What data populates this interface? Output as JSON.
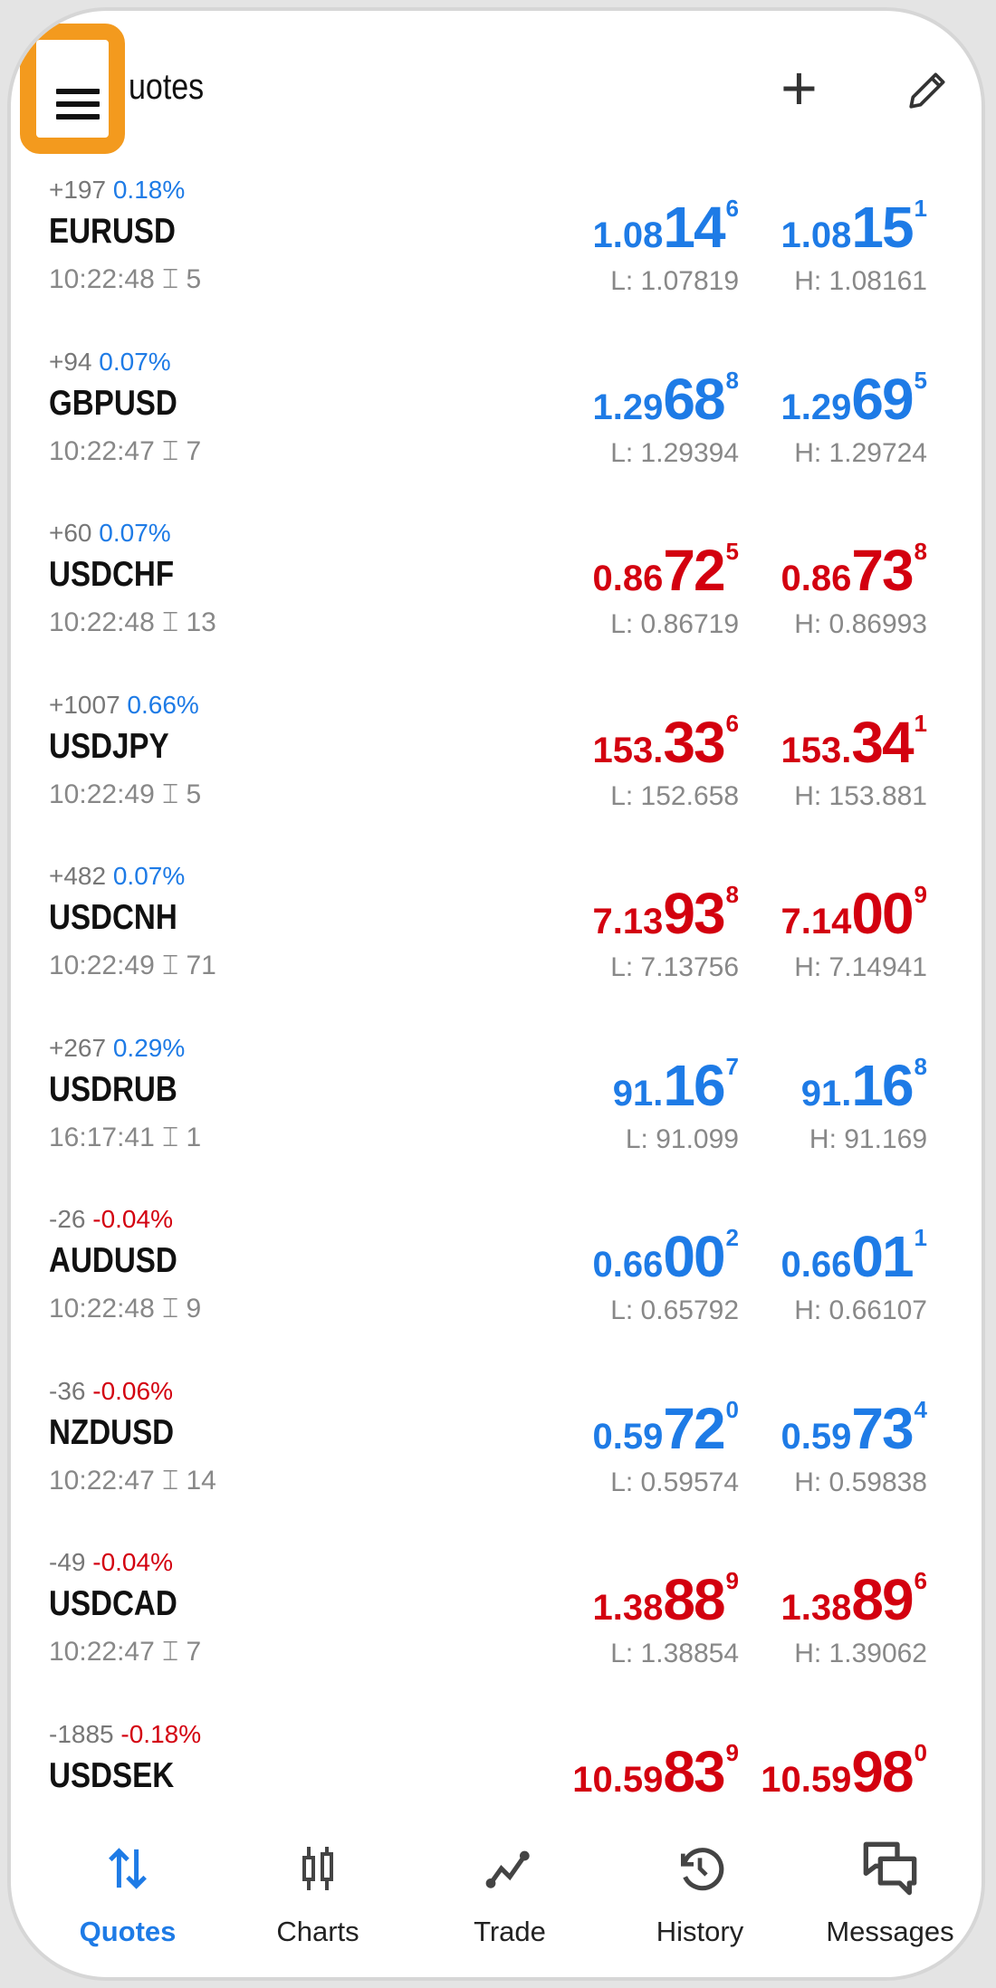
{
  "header": {
    "title": "uotes",
    "menu_icon": "hamburger-icon",
    "add_icon": "plus-icon",
    "edit_icon": "pencil-icon",
    "highlight_color": "#f39a1e"
  },
  "colors": {
    "up": "#1e7be6",
    "down": "#d3000f"
  },
  "quotes": [
    {
      "change": "+197",
      "pct": "0.18%",
      "pct_dir": "up",
      "symbol": "EURUSD",
      "time": "10:22:48",
      "spread": "5",
      "dir": "up",
      "bid": {
        "p": "1.08",
        "b": "14",
        "s": "6"
      },
      "ask": {
        "p": "1.08",
        "b": "15",
        "s": "1"
      },
      "low": "L: 1.07819",
      "high": "H: 1.08161"
    },
    {
      "change": "+94",
      "pct": "0.07%",
      "pct_dir": "up",
      "symbol": "GBPUSD",
      "time": "10:22:47",
      "spread": "7",
      "dir": "up",
      "bid": {
        "p": "1.29",
        "b": "68",
        "s": "8"
      },
      "ask": {
        "p": "1.29",
        "b": "69",
        "s": "5"
      },
      "low": "L: 1.29394",
      "high": "H: 1.29724"
    },
    {
      "change": "+60",
      "pct": "0.07%",
      "pct_dir": "up",
      "symbol": "USDCHF",
      "time": "10:22:48",
      "spread": "13",
      "dir": "down",
      "bid": {
        "p": "0.86",
        "b": "72",
        "s": "5"
      },
      "ask": {
        "p": "0.86",
        "b": "73",
        "s": "8"
      },
      "low": "L: 0.86719",
      "high": "H: 0.86993"
    },
    {
      "change": "+1007",
      "pct": "0.66%",
      "pct_dir": "up",
      "symbol": "USDJPY",
      "time": "10:22:49",
      "spread": "5",
      "dir": "down",
      "bid": {
        "p": "153.",
        "b": "33",
        "s": "6"
      },
      "ask": {
        "p": "153.",
        "b": "34",
        "s": "1"
      },
      "low": "L: 152.658",
      "high": "H: 153.881"
    },
    {
      "change": "+482",
      "pct": "0.07%",
      "pct_dir": "up",
      "symbol": "USDCNH",
      "time": "10:22:49",
      "spread": "71",
      "dir": "down",
      "bid": {
        "p": "7.13",
        "b": "93",
        "s": "8"
      },
      "ask": {
        "p": "7.14",
        "b": "00",
        "s": "9"
      },
      "low": "L: 7.13756",
      "high": "H: 7.14941"
    },
    {
      "change": "+267",
      "pct": "0.29%",
      "pct_dir": "up",
      "symbol": "USDRUB",
      "time": "16:17:41",
      "spread": "1",
      "dir": "up",
      "bid": {
        "p": "91.",
        "b": "16",
        "s": "7"
      },
      "ask": {
        "p": "91.",
        "b": "16",
        "s": "8"
      },
      "low": "L: 91.099",
      "high": "H: 91.169"
    },
    {
      "change": "-26",
      "pct": "-0.04%",
      "pct_dir": "down",
      "symbol": "AUDUSD",
      "time": "10:22:48",
      "spread": "9",
      "dir": "up",
      "bid": {
        "p": "0.66",
        "b": "00",
        "s": "2"
      },
      "ask": {
        "p": "0.66",
        "b": "01",
        "s": "1"
      },
      "low": "L: 0.65792",
      "high": "H: 0.66107"
    },
    {
      "change": "-36",
      "pct": "-0.06%",
      "pct_dir": "down",
      "symbol": "NZDUSD",
      "time": "10:22:47",
      "spread": "14",
      "dir": "up",
      "bid": {
        "p": "0.59",
        "b": "72",
        "s": "0"
      },
      "ask": {
        "p": "0.59",
        "b": "73",
        "s": "4"
      },
      "low": "L: 0.59574",
      "high": "H: 0.59838"
    },
    {
      "change": "-49",
      "pct": "-0.04%",
      "pct_dir": "down",
      "symbol": "USDCAD",
      "time": "10:22:47",
      "spread": "7",
      "dir": "down",
      "bid": {
        "p": "1.38",
        "b": "88",
        "s": "9"
      },
      "ask": {
        "p": "1.38",
        "b": "89",
        "s": "6"
      },
      "low": "L: 1.38854",
      "high": "H: 1.39062"
    },
    {
      "change": "-1885",
      "pct": "-0.18%",
      "pct_dir": "down",
      "symbol": "USDSEK",
      "dir": "down",
      "bid": {
        "p": "10.59",
        "b": "83",
        "s": "9"
      },
      "ask": {
        "p": "10.59",
        "b": "98",
        "s": "0"
      }
    }
  ],
  "nav": [
    {
      "label": "Quotes",
      "icon": "quotes-arrows-icon",
      "active": true
    },
    {
      "label": "Charts",
      "icon": "candlestick-icon"
    },
    {
      "label": "Trade",
      "icon": "trade-line-icon"
    },
    {
      "label": "History",
      "icon": "history-icon"
    },
    {
      "label": "Messages",
      "icon": "messages-icon"
    }
  ]
}
